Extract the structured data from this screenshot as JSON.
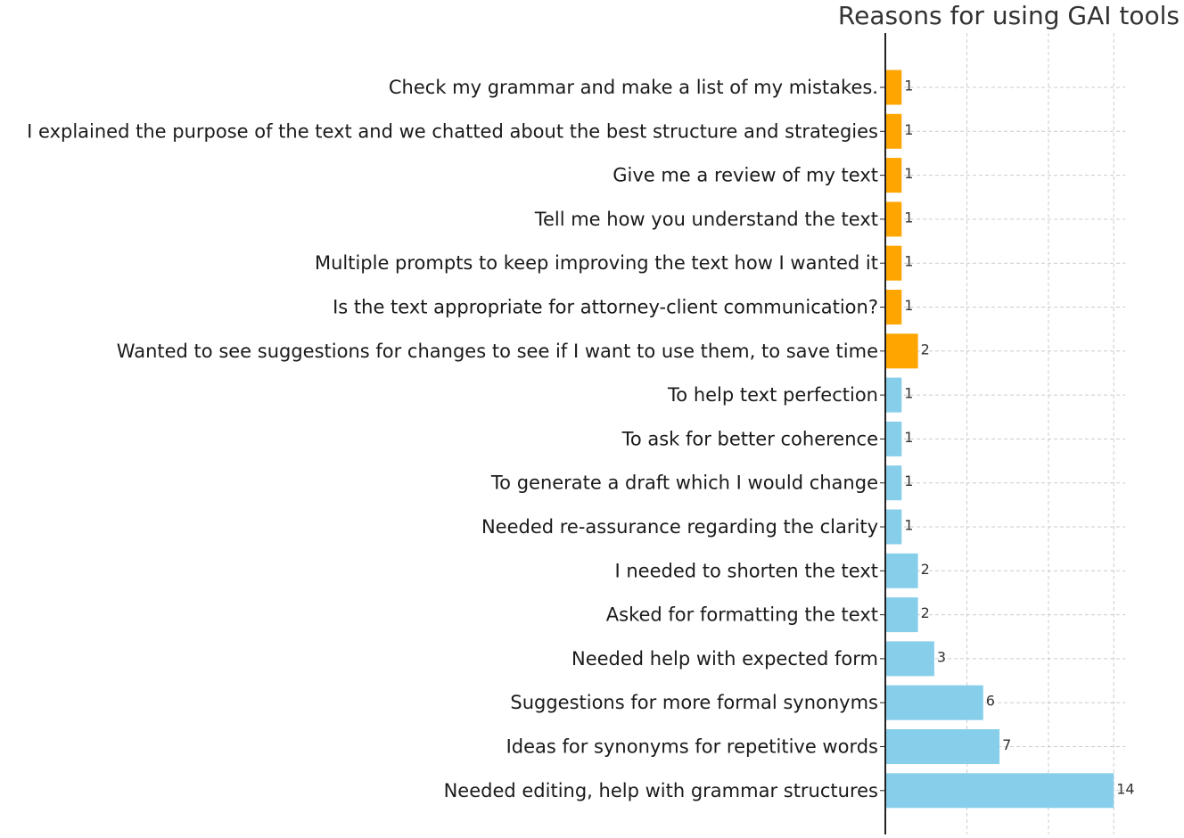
{
  "chart_data": {
    "type": "bar",
    "orientation": "horizontal",
    "title": "Reasons for using GAI tools",
    "xlabel": "",
    "ylabel": "",
    "xlim": [
      0,
      14.8
    ],
    "grid": true,
    "categories": [
      "Check my grammar and make a list of my mistakes.",
      "I explained the purpose of the text and we chatted about the best structure and strategies",
      "Give me a review of my text",
      "Tell me how you understand the text",
      "Multiple prompts to keep improving the text how I wanted it",
      "Is the text appropriate for attorney-client communication?",
      "Wanted to see suggestions for changes to see if I want to use them, to save time",
      "To help text perfection",
      "To ask for better coherence",
      "To generate a draft which I would change",
      "Needed re-assurance regarding the clarity",
      "I needed to shorten the text",
      "Asked for formatting the text",
      "Needed help with expected form",
      "Suggestions for more formal synonyms",
      "Ideas for synonyms for repetitive words",
      "Needed editing, help with grammar structures"
    ],
    "values": [
      1,
      1,
      1,
      1,
      1,
      1,
      2,
      1,
      1,
      1,
      1,
      2,
      2,
      3,
      6,
      7,
      14
    ],
    "bar_colors": [
      "#FFA500",
      "#FFA500",
      "#FFA500",
      "#FFA500",
      "#FFA500",
      "#FFA500",
      "#FFA500",
      "#87CEEB",
      "#87CEEB",
      "#87CEEB",
      "#87CEEB",
      "#87CEEB",
      "#87CEEB",
      "#87CEEB",
      "#87CEEB",
      "#87CEEB",
      "#87CEEB"
    ],
    "gridline_values": [
      5,
      10,
      14
    ]
  }
}
